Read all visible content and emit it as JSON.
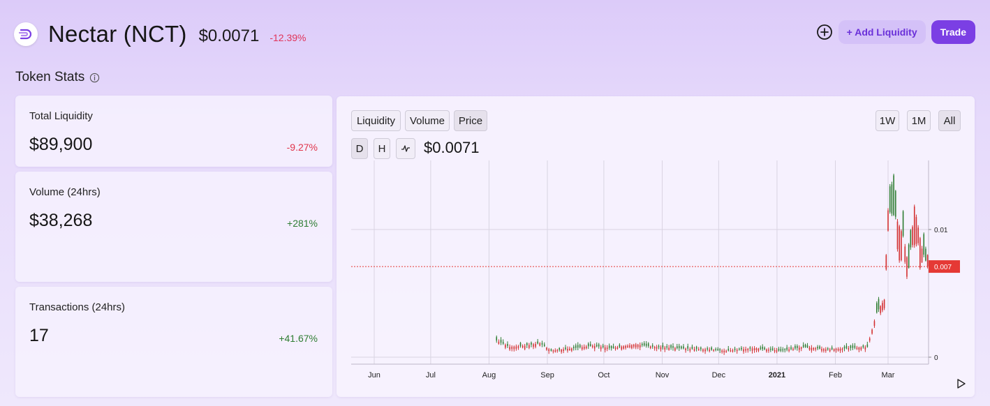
{
  "header": {
    "token_name": "Nectar (NCT)",
    "price": "$0.0071",
    "change": "-12.39%",
    "logo_icon": "nectar-logo-icon"
  },
  "actions": {
    "add_icon": "plus-circle-icon",
    "add_liquidity_label": "+ Add Liquidity",
    "trade_label": "Trade",
    "accent": "#7b3fe4"
  },
  "section": {
    "title": "Token Stats",
    "info_icon": "info-icon"
  },
  "stats": {
    "liquidity": {
      "label": "Total Liquidity",
      "value": "$89,900",
      "change": "-9.27%"
    },
    "volume": {
      "label": "Volume (24hrs)",
      "value": "$38,268",
      "change": "+281%"
    },
    "transactions": {
      "label": "Transactions (24hrs)",
      "value": "17",
      "change": "+41.67%"
    }
  },
  "chart_controls": {
    "metric_tabs": [
      "Liquidity",
      "Volume",
      "Price"
    ],
    "selected_metric": "Price",
    "range_tabs": [
      "1W",
      "1M",
      "All"
    ],
    "selected_range": "All",
    "interval_tabs": [
      "D",
      "H"
    ],
    "selected_interval": "D",
    "chart_type_icon": "line-chart-icon",
    "current_price": "$0.0071",
    "play_icon": "play-icon"
  },
  "chart_data": {
    "type": "candlestick",
    "x_ticks": [
      "Jun",
      "Jul",
      "Aug",
      "Sep",
      "Oct",
      "Nov",
      "Dec",
      "2021",
      "Feb",
      "Mar"
    ],
    "y_ticks": [
      "0.01",
      "0"
    ],
    "current_price_label": "0.007",
    "current_price_value": 0.0071,
    "up_color": "#2e7d32",
    "down_color": "#d32f2f",
    "price_line_color": "#e53935",
    "series": [
      {
        "date": "2020-08-05",
        "price": 0.0013
      },
      {
        "date": "2020-08-12",
        "price": 0.0008
      },
      {
        "date": "2020-08-20",
        "price": 0.0009
      },
      {
        "date": "2020-08-28",
        "price": 0.0011
      },
      {
        "date": "2020-09-03",
        "price": 0.0005
      },
      {
        "date": "2020-09-15",
        "price": 0.0007
      },
      {
        "date": "2020-09-25",
        "price": 0.0009
      },
      {
        "date": "2020-10-05",
        "price": 0.0007
      },
      {
        "date": "2020-10-18",
        "price": 0.001
      },
      {
        "date": "2020-10-28",
        "price": 0.0008
      },
      {
        "date": "2020-11-10",
        "price": 0.0007
      },
      {
        "date": "2020-11-25",
        "price": 0.0006
      },
      {
        "date": "2020-12-05",
        "price": 0.0005
      },
      {
        "date": "2020-12-20",
        "price": 0.0007
      },
      {
        "date": "2021-01-03",
        "price": 0.0005
      },
      {
        "date": "2021-01-15",
        "price": 0.0008
      },
      {
        "date": "2021-01-28",
        "price": 0.0006
      },
      {
        "date": "2021-02-08",
        "price": 0.0007
      },
      {
        "date": "2021-02-18",
        "price": 0.0008
      },
      {
        "date": "2021-02-23",
        "price": 0.0035
      },
      {
        "date": "2021-02-27",
        "price": 0.0045
      },
      {
        "date": "2021-03-01",
        "price": 0.0115
      },
      {
        "date": "2021-03-05",
        "price": 0.011
      },
      {
        "date": "2021-03-09",
        "price": 0.0095
      },
      {
        "date": "2021-03-12",
        "price": 0.007
      },
      {
        "date": "2021-03-15",
        "price": 0.0118
      },
      {
        "date": "2021-03-19",
        "price": 0.0085
      },
      {
        "date": "2021-03-22",
        "price": 0.0071
      }
    ]
  }
}
